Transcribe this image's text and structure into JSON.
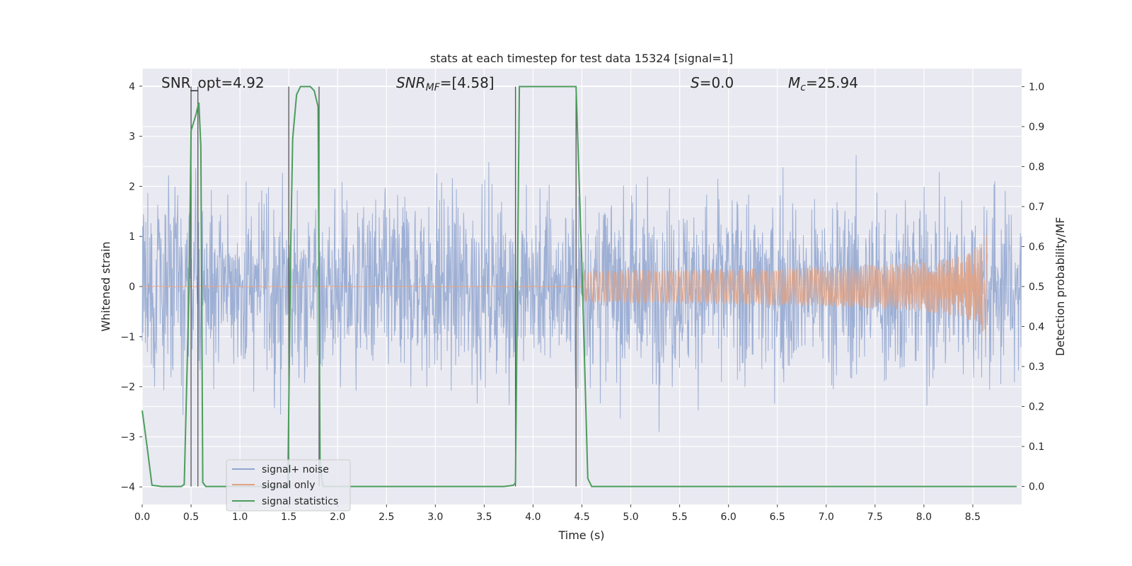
{
  "chart_data": {
    "type": "line",
    "title": "stats at each timestep for test data 15324 [signal=1]",
    "xlabel": "Time (s)",
    "ylabel_left": "Whitened strain",
    "ylabel_right": "Detection probability/MF",
    "xlim": [
      0.0,
      9.0
    ],
    "ylim_left": [
      -4.35,
      4.35
    ],
    "ylim_right": [
      -0.045,
      1.045
    ],
    "x_ticks": [
      "0.0",
      "0.5",
      "1.0",
      "1.5",
      "2.0",
      "2.5",
      "3.0",
      "3.5",
      "4.0",
      "4.5",
      "5.0",
      "5.5",
      "6.0",
      "6.5",
      "7.0",
      "7.5",
      "8.0",
      "8.5"
    ],
    "y_ticks_left": [
      "−4",
      "−3",
      "−2",
      "−1",
      "0",
      "1",
      "2",
      "3",
      "4"
    ],
    "y_ticks_right": [
      "0.0",
      "0.1",
      "0.2",
      "0.3",
      "0.4",
      "0.5",
      "0.6",
      "0.7",
      "0.8",
      "0.9",
      "1.0"
    ],
    "grid": true,
    "legend_position": "lower-left",
    "annotations": {
      "snr_opt": "SNR_opt=4.92",
      "snr_mf_main": "SNR",
      "snr_mf_sub": "MF",
      "snr_mf_value": "=[4.58]",
      "s_symbol": "S",
      "s_value": "=0.0",
      "mc_symbol": "M",
      "mc_sub": "c",
      "mc_value": "=25.94"
    },
    "series": [
      {
        "name": "signal+ noise",
        "axis": "left",
        "color": "#8fa5cf",
        "style": "dense noise band",
        "envelope": {
          "x": [
            0.0,
            9.0
          ],
          "upper_typical": 2.3,
          "lower_typical": -2.3,
          "upper_peak": 3.9,
          "lower_peak": -4.0
        }
      },
      {
        "name": "signal only",
        "axis": "left",
        "color": "#e1a283",
        "style": "chirp",
        "chirp": {
          "start": 0.0,
          "end": 8.65,
          "peak_amplitude": 1.2
        }
      },
      {
        "name": "signal statistics",
        "axis": "right",
        "color": "#4c9d5c",
        "x": [
          0.0,
          0.05,
          0.1,
          0.2,
          0.3,
          0.4,
          0.43,
          0.48,
          0.5,
          0.55,
          0.56,
          0.58,
          0.6,
          0.62,
          0.65,
          0.7,
          0.8,
          1.0,
          1.2,
          1.4,
          1.49,
          1.52,
          1.54,
          1.58,
          1.62,
          1.72,
          1.76,
          1.8,
          1.82,
          1.85,
          1.9,
          2.0,
          2.5,
          3.0,
          3.5,
          3.7,
          3.8,
          3.82,
          3.86,
          3.9,
          4.0,
          4.2,
          4.4,
          4.44,
          4.5,
          4.56,
          4.6,
          5.0,
          6.0,
          7.0,
          8.0,
          8.5,
          8.95
        ],
        "y": [
          0.19,
          0.1,
          0.003,
          0.0,
          0.0,
          0.0,
          0.005,
          0.5,
          0.89,
          0.93,
          0.94,
          0.96,
          0.85,
          0.01,
          0.0,
          0.0,
          0.0,
          0.0,
          0.0,
          0.0,
          0.0,
          0.6,
          0.87,
          0.98,
          1.0,
          1.0,
          0.99,
          0.95,
          0.05,
          0.0,
          0.0,
          0.0,
          0.0,
          0.0,
          0.0,
          0.0,
          0.003,
          0.01,
          1.0,
          1.0,
          1.0,
          1.0,
          1.0,
          1.0,
          0.55,
          0.02,
          0.0,
          0.0,
          0.0,
          0.0,
          0.0,
          0.0,
          0.0
        ]
      }
    ],
    "vertical_markers": {
      "color": "#555555",
      "x": [
        0.5,
        0.57,
        1.5,
        1.81,
        3.82,
        4.44
      ],
      "top": 1.0,
      "bottom": 0.0
    }
  }
}
